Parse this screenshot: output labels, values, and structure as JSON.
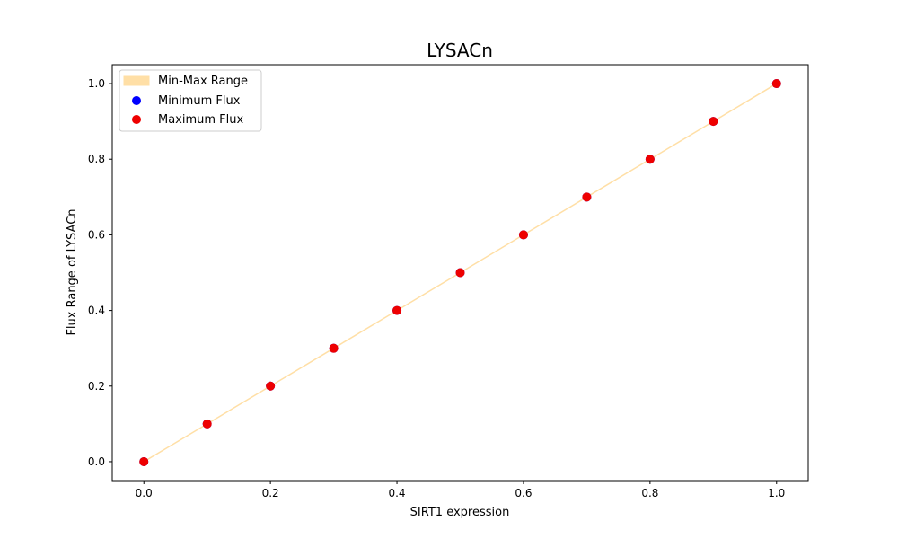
{
  "chart_data": {
    "type": "scatter",
    "title": "LYSACn",
    "xlabel": "SIRT1 expression",
    "ylabel": "Flux Range of LYSACn",
    "xlim": [
      -0.05,
      1.05
    ],
    "ylim": [
      -0.05,
      1.05
    ],
    "xticks": [
      0.0,
      0.2,
      0.4,
      0.6,
      0.8,
      1.0
    ],
    "yticks": [
      0.0,
      0.2,
      0.4,
      0.6,
      0.8,
      1.0
    ],
    "xtick_labels": [
      "0.0",
      "0.2",
      "0.4",
      "0.6",
      "0.8",
      "1.0"
    ],
    "ytick_labels": [
      "0.0",
      "0.2",
      "0.4",
      "0.6",
      "0.8",
      "1.0"
    ],
    "grid": false,
    "legend_position": "top-left",
    "x": [
      0.0,
      0.1,
      0.2,
      0.3,
      0.4,
      0.5,
      0.6,
      0.7,
      0.8,
      0.9,
      1.0
    ],
    "band": {
      "name": "Min-Max Range",
      "color": "#ffdfa6",
      "lower": [
        0.0,
        0.1,
        0.2,
        0.3,
        0.4,
        0.5,
        0.6,
        0.7,
        0.8,
        0.9,
        1.0
      ],
      "upper": [
        0.0,
        0.1,
        0.2,
        0.3,
        0.4,
        0.5,
        0.6,
        0.7,
        0.8,
        0.9,
        1.0
      ]
    },
    "series": [
      {
        "name": "Minimum Flux",
        "color": "#0000ff",
        "values": [
          0.0,
          0.1,
          0.2,
          0.3,
          0.4,
          0.5,
          0.6,
          0.7,
          0.8,
          0.9,
          1.0
        ]
      },
      {
        "name": "Maximum Flux",
        "color": "#ee0000",
        "values": [
          0.0,
          0.1,
          0.2,
          0.3,
          0.4,
          0.5,
          0.6,
          0.7,
          0.8,
          0.9,
          1.0
        ]
      }
    ]
  }
}
